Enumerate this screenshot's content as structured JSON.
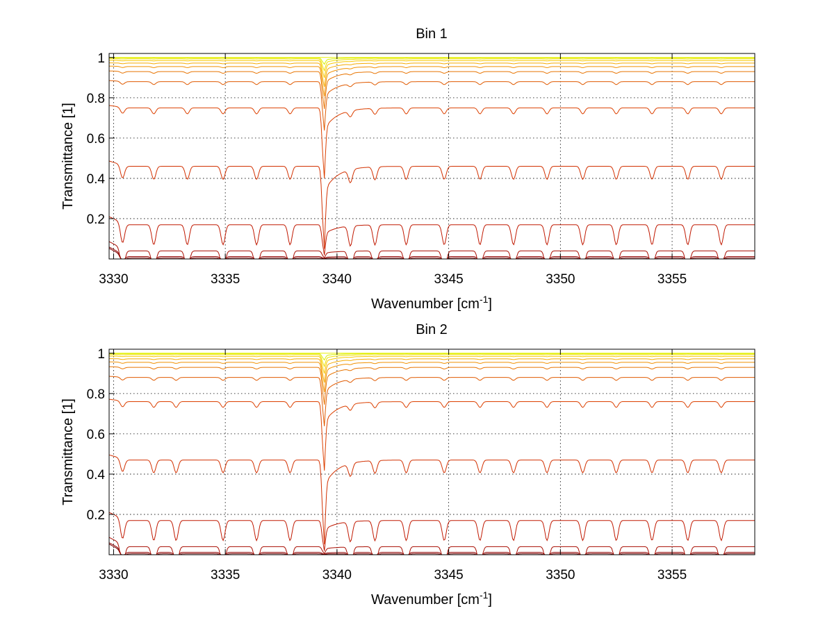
{
  "chart_data": [
    {
      "type": "line",
      "title": "Bin 1",
      "xlabel": "Wavenumber [cm",
      "xlabel_sup": "-1",
      "xlabel_end": "]",
      "ylabel": "Transmittance [1]",
      "xlim": [
        3329.8,
        3358.7
      ],
      "ylim": [
        0,
        1.02
      ],
      "xticks": [
        3330,
        3335,
        3340,
        3345,
        3350,
        3355
      ],
      "yticks": [
        0.2,
        0.4,
        0.6,
        0.8,
        1
      ],
      "ytick_labels": [
        "0.2",
        "0.4",
        "0.6",
        "0.8",
        "1"
      ],
      "grid": true,
      "series_baselines": [
        0.005,
        0.012,
        0.04,
        0.17,
        0.46,
        0.75,
        0.88,
        0.93,
        0.955,
        0.972,
        0.985,
        0.993,
        0.998,
        1.0
      ],
      "series_colors": [
        "#7a0000",
        "#900000",
        "#a80c00",
        "#c01800",
        "#d23000",
        "#dc4000",
        "#e05a00",
        "#e87400",
        "#f09000",
        "#f5aa00",
        "#f8c800",
        "#f0e000",
        "#d8f000",
        "#e8f000"
      ],
      "weak_lines": [
        3330.4,
        3331.8,
        3333.3,
        3334.9,
        3336.4,
        3337.9,
        3340.6,
        3341.7,
        3343.1,
        3344.8,
        3346.4,
        3347.9,
        3349.4,
        3351.0,
        3352.5,
        3354.1,
        3355.7,
        3357.2
      ],
      "strong_line": 3339.4
    },
    {
      "type": "line",
      "title": "Bin 2",
      "xlabel": "Wavenumber [cm",
      "xlabel_sup": "-1",
      "xlabel_end": "]",
      "ylabel": "Transmittance [1]",
      "xlim": [
        3329.8,
        3358.7
      ],
      "ylim": [
        0,
        1.02
      ],
      "xticks": [
        3330,
        3335,
        3340,
        3345,
        3350,
        3355
      ],
      "yticks": [
        0.2,
        0.4,
        0.6,
        0.8,
        1
      ],
      "ytick_labels": [
        "0.2",
        "0.4",
        "0.6",
        "0.8",
        "1"
      ],
      "grid": true,
      "series_baselines": [
        0.005,
        0.012,
        0.04,
        0.17,
        0.47,
        0.76,
        0.88,
        0.93,
        0.955,
        0.972,
        0.985,
        0.993,
        0.998,
        1.0
      ],
      "series_colors": [
        "#7a0000",
        "#900000",
        "#a80c00",
        "#c01800",
        "#d23000",
        "#dc4000",
        "#e05a00",
        "#e87400",
        "#f09000",
        "#f5aa00",
        "#f8c800",
        "#f0e000",
        "#d8f000",
        "#e8f000"
      ],
      "weak_lines": [
        3330.4,
        3331.8,
        3332.8,
        3334.9,
        3336.4,
        3337.9,
        3340.6,
        3341.7,
        3343.1,
        3344.8,
        3346.4,
        3347.9,
        3349.4,
        3351.0,
        3352.5,
        3354.1,
        3355.7,
        3357.2
      ],
      "strong_line": 3339.4
    }
  ]
}
